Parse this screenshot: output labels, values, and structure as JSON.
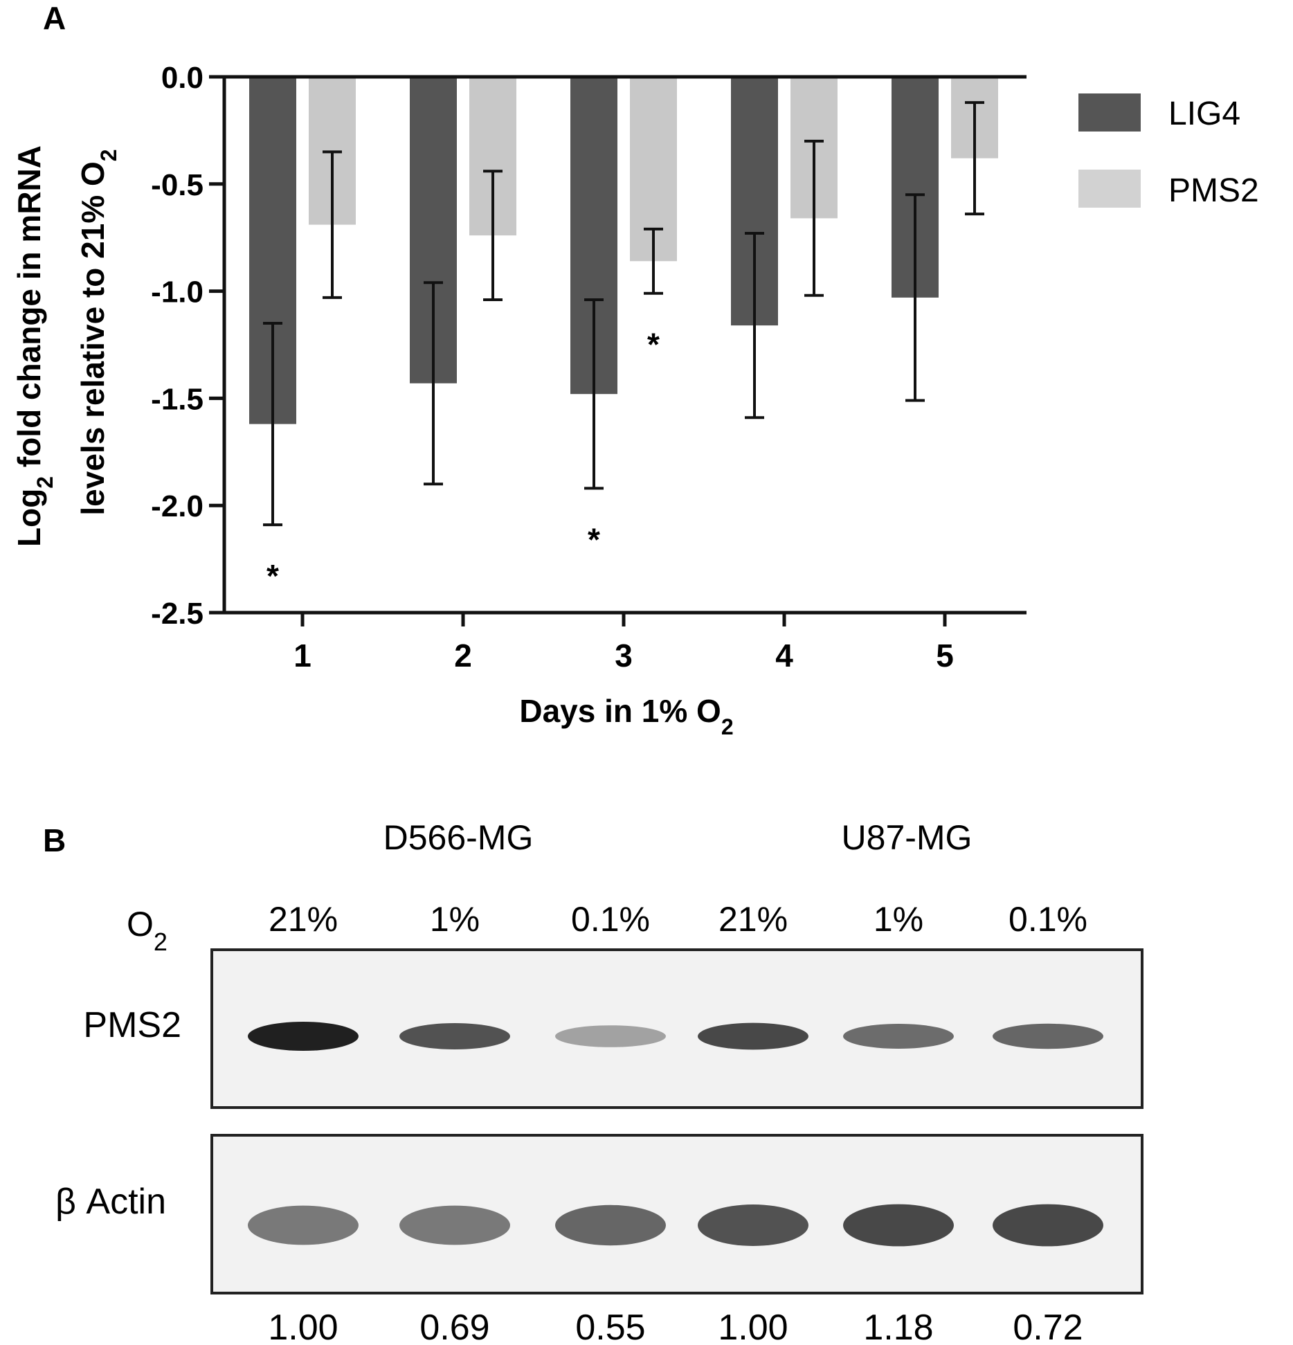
{
  "panel_a": {
    "label": "A",
    "ylabel_line1": {
      "pre": "Log",
      "sub": "2",
      "post": " fold change in mRNA"
    },
    "ylabel_line2": {
      "pre": "levels relative to 21% O",
      "sub": "2"
    },
    "xlabel": {
      "pre": "Days in 1% O",
      "sub": "2"
    }
  },
  "chart_data": {
    "type": "bar",
    "categories": [
      "1",
      "2",
      "3",
      "4",
      "5"
    ],
    "series": [
      {
        "name": "LIG4",
        "color": "#555555",
        "values": [
          -1.62,
          -1.43,
          -1.48,
          -1.16,
          -1.03
        ],
        "errors": [
          0.47,
          0.47,
          0.44,
          0.43,
          0.48
        ]
      },
      {
        "name": "PMS2",
        "color": "#c8c8c8",
        "values": [
          -0.69,
          -0.74,
          -0.86,
          -0.66,
          -0.38
        ],
        "errors": [
          0.34,
          0.3,
          0.15,
          0.36,
          0.26
        ]
      }
    ],
    "ylim": [
      -2.5,
      0.0
    ],
    "yticks": [
      "0.0",
      "-0.5",
      "-1.0",
      "-1.5",
      "-2.0",
      "-2.5"
    ],
    "significance": [
      {
        "series": "LIG4",
        "category": "1",
        "mark": "*"
      },
      {
        "series": "LIG4",
        "category": "3",
        "mark": "*"
      },
      {
        "series": "PMS2",
        "category": "3",
        "mark": "*"
      }
    ],
    "legend_position": "top-right"
  },
  "panel_b": {
    "label": "B",
    "cell_lines": [
      "D566-MG",
      "U87-MG"
    ],
    "o2_label": {
      "pre": "O",
      "sub": "2"
    },
    "conditions": [
      "21%",
      "1%",
      "0.1%",
      "21%",
      "1%",
      "0.1%"
    ],
    "blots": [
      {
        "name": "PMS2",
        "band_intensity": [
          1.0,
          0.75,
          0.35,
          0.8,
          0.62,
          0.65
        ]
      },
      {
        "name": "β Actin",
        "band_intensity": [
          0.55,
          0.55,
          0.65,
          0.75,
          0.8,
          0.8
        ]
      }
    ],
    "quantification": [
      "1.00",
      "0.69",
      "0.55",
      "1.00",
      "1.18",
      "0.72"
    ]
  }
}
